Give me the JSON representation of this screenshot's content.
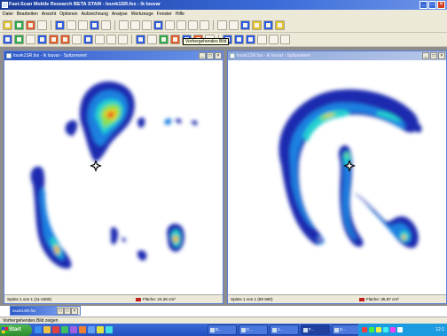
{
  "app": {
    "title": "Fast-Scan Mobile Research BETA STAM - louvk1SR.fsx - lk louvar",
    "window_buttons": [
      "_",
      "□",
      "×"
    ]
  },
  "menu": [
    "Datei",
    "Bearbeiten",
    "Ansicht",
    "Optionen",
    "Aufzeichnung",
    "Analyse",
    "Werkzeuge",
    "Fenster",
    "Hilfe"
  ],
  "tooltip": "Vorhergehendes Bild",
  "left_window": {
    "title": "louvk1SR.fsx - lk louvar - Spitzenwert",
    "status_left": "Spitze 1 von 1 (11-1000)",
    "status_area": "Fläche: 24.26 cm²"
  },
  "right_window": {
    "title": "louvk1SR.fsx - lk louvar - Spitzenwert",
    "status_left": "Spitze 1 von 1 (80 690)",
    "status_area": "Fläche: 35.87 cm²"
  },
  "minimized_window": {
    "title": "louvk1SR.fsx"
  },
  "statusbar": "Vorhergehendes Bild zeigen",
  "taskbar": {
    "start": "Start",
    "tasks": [
      "B...",
      "C...",
      "1...",
      "F...",
      "D..."
    ],
    "clock": "12:1"
  },
  "colors": {
    "title_blue": "#2d59c9",
    "heat_low": "#1a2ab0",
    "heat_mid": "#20d0d0",
    "heat_high": "#e82020"
  }
}
